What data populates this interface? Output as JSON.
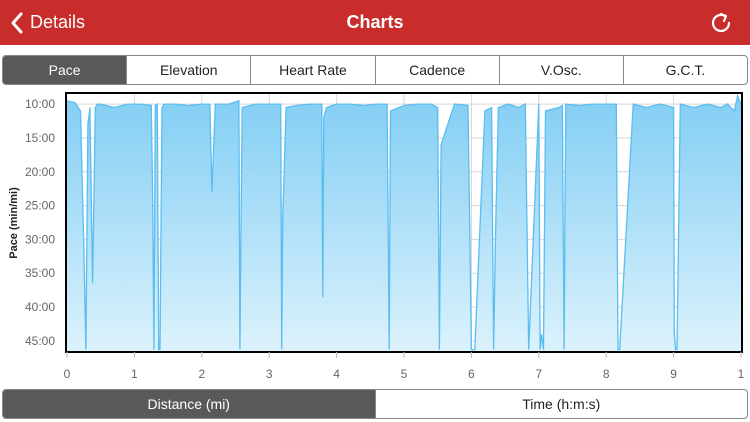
{
  "header": {
    "back_label": "Details",
    "title": "Charts"
  },
  "metric_tabs": [
    {
      "label": "Pace",
      "active": true
    },
    {
      "label": "Elevation",
      "active": false
    },
    {
      "label": "Heart Rate",
      "active": false
    },
    {
      "label": "Cadence",
      "active": false
    },
    {
      "label": "V.Osc.",
      "active": false
    },
    {
      "label": "G.C.T.",
      "active": false
    }
  ],
  "axis_tabs": [
    {
      "label": "Distance (mi)",
      "active": true
    },
    {
      "label": "Time (h:m:s)",
      "active": false
    }
  ],
  "colors": {
    "nav_bar": "#c82d2b",
    "fill_top": "#82cef4",
    "fill_bottom": "#dcf2fc",
    "line": "#5bbdf0"
  },
  "chart_data": {
    "type": "area",
    "title": "",
    "xlabel": "",
    "ylabel": "Pace (min/mi)",
    "y_inverted": true,
    "xlim": [
      0,
      1
    ],
    "ylim": [
      8.5,
      46.5
    ],
    "x_ticks": [
      "0",
      "1",
      "2",
      "3",
      "4",
      "5",
      "6",
      "7",
      "8",
      "9",
      "1"
    ],
    "y_ticks": [
      "10:00",
      "15:00",
      "20:00",
      "25:00",
      "30:00",
      "35:00",
      "40:00",
      "45:00"
    ],
    "y_tick_values": [
      10,
      15,
      20,
      25,
      30,
      35,
      40,
      45
    ],
    "grid": true,
    "series": [
      {
        "x": [
          0.0,
          0.012,
          0.02,
          0.025,
          0.028,
          0.031,
          0.034,
          0.038,
          0.042,
          0.045,
          0.05,
          0.07,
          0.09,
          0.11,
          0.125,
          0.127,
          0.129,
          0.131,
          0.134,
          0.136,
          0.138,
          0.141,
          0.144,
          0.16,
          0.18,
          0.2,
          0.212,
          0.215,
          0.22,
          0.24,
          0.255,
          0.2565,
          0.258,
          0.26,
          0.28,
          0.3,
          0.317,
          0.3185,
          0.32,
          0.325,
          0.34,
          0.36,
          0.378,
          0.3795,
          0.381,
          0.385,
          0.4,
          0.42,
          0.44,
          0.46,
          0.475,
          0.478,
          0.48,
          0.5,
          0.52,
          0.54,
          0.55,
          0.5525,
          0.555,
          0.575,
          0.595,
          0.6,
          0.605,
          0.62,
          0.63,
          0.633,
          0.636,
          0.64,
          0.655,
          0.67,
          0.68,
          0.685,
          0.7,
          0.702,
          0.704,
          0.707,
          0.71,
          0.73,
          0.735,
          0.7375,
          0.74,
          0.76,
          0.78,
          0.8,
          0.815,
          0.8175,
          0.82,
          0.84,
          0.86,
          0.88,
          0.9,
          0.901,
          0.903,
          0.905,
          0.91,
          0.93,
          0.95,
          0.97,
          0.98,
          0.99,
          0.995,
          1.0
        ],
        "y": [
          9.5,
          9.8,
          11,
          31,
          46.3,
          13,
          10.5,
          36.5,
          10.5,
          10,
          10,
          10.5,
          10,
          10,
          10.2,
          23,
          46.3,
          10.2,
          10,
          46.3,
          46.3,
          10.5,
          10,
          10,
          10.2,
          10,
          10,
          23,
          10,
          10,
          9.5,
          46.3,
          30,
          10.5,
          10,
          10,
          10,
          46.3,
          27,
          10.5,
          10.2,
          10,
          10,
          38.5,
          12,
          10.5,
          10,
          10,
          10.2,
          10,
          10,
          46.3,
          11,
          10.2,
          10,
          10,
          10.5,
          46.3,
          16,
          10,
          10.2,
          46.3,
          46.3,
          11,
          10.5,
          46.3,
          28,
          10.5,
          10,
          10.5,
          10,
          46.3,
          10,
          46.3,
          44,
          46.3,
          11,
          10.5,
          10.2,
          46.3,
          10,
          10.2,
          10,
          10,
          10,
          46.3,
          46.3,
          10,
          10.5,
          10,
          10.5,
          44,
          46.3,
          46.3,
          10,
          10.5,
          10,
          10.5,
          10,
          11,
          8.8,
          10
        ]
      }
    ]
  }
}
